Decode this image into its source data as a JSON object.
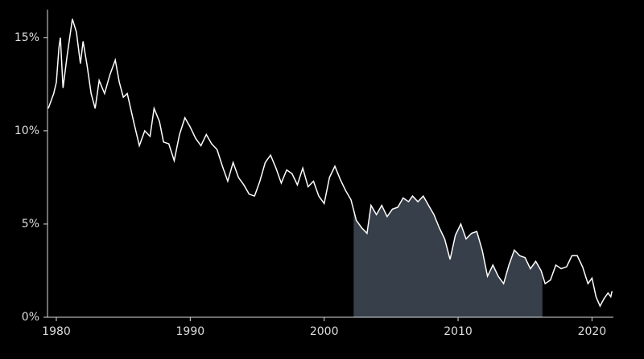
{
  "chart_data": {
    "type": "line",
    "x": [
      1979.4,
      1979.8,
      1980.0,
      1980.2,
      1980.3,
      1980.5,
      1980.8,
      1981.0,
      1981.2,
      1981.5,
      1981.8,
      1982.0,
      1982.3,
      1982.6,
      1982.9,
      1983.2,
      1983.6,
      1984.0,
      1984.4,
      1984.7,
      1985.0,
      1985.3,
      1985.8,
      1986.2,
      1986.6,
      1987.0,
      1987.3,
      1987.7,
      1988.0,
      1988.4,
      1988.8,
      1989.2,
      1989.6,
      1990.0,
      1990.4,
      1990.8,
      1991.2,
      1991.6,
      1992.0,
      1992.4,
      1992.8,
      1993.2,
      1993.6,
      1994.0,
      1994.4,
      1994.8,
      1995.2,
      1995.6,
      1996.0,
      1996.4,
      1996.8,
      1997.2,
      1997.6,
      1998.0,
      1998.4,
      1998.8,
      1999.2,
      1999.6,
      2000.0,
      2000.4,
      2000.8,
      2001.2,
      2001.6,
      2002.0,
      2002.4,
      2002.8,
      2003.2,
      2003.5,
      2003.9,
      2004.3,
      2004.7,
      2005.1,
      2005.5,
      2005.9,
      2006.3,
      2006.6,
      2007.0,
      2007.4,
      2007.8,
      2008.2,
      2008.6,
      2009.0,
      2009.4,
      2009.8,
      2010.2,
      2010.6,
      2011.0,
      2011.4,
      2011.8,
      2012.2,
      2012.6,
      2013.0,
      2013.4,
      2013.8,
      2014.2,
      2014.6,
      2015.0,
      2015.4,
      2015.8,
      2016.2,
      2016.5,
      2016.9,
      2017.3,
      2017.7,
      2018.1,
      2018.5,
      2018.9,
      2019.3,
      2019.7,
      2020.0,
      2020.3,
      2020.6,
      2020.9,
      2021.2,
      2021.4,
      2021.5
    ],
    "series": [
      {
        "color": "#ffffff",
        "values": [
          11.2,
          12.0,
          12.6,
          14.5,
          15.0,
          12.3,
          14.0,
          15.0,
          16.0,
          15.3,
          13.6,
          14.8,
          13.5,
          12.0,
          11.2,
          12.7,
          12.0,
          13.0,
          13.8,
          12.6,
          11.8,
          12.0,
          10.4,
          9.2,
          10.0,
          9.7,
          11.2,
          10.5,
          9.4,
          9.3,
          8.4,
          9.8,
          10.7,
          10.2,
          9.6,
          9.2,
          9.8,
          9.3,
          9.0,
          8.1,
          7.3,
          8.3,
          7.5,
          7.1,
          6.6,
          6.5,
          7.3,
          8.3,
          8.7,
          8.0,
          7.2,
          7.9,
          7.7,
          7.1,
          8.0,
          7.0,
          7.3,
          6.5,
          6.1,
          7.5,
          8.1,
          7.4,
          6.8,
          6.3,
          5.2,
          4.8,
          4.5,
          6.0,
          5.5,
          6.0,
          5.4,
          5.8,
          5.9,
          6.4,
          6.2,
          6.5,
          6.2,
          6.5,
          6.0,
          5.5,
          4.8,
          4.2,
          3.1,
          4.4,
          5.0,
          4.2,
          4.5,
          4.6,
          3.6,
          2.2,
          2.8,
          2.2,
          1.8,
          2.8,
          3.6,
          3.3,
          3.2,
          2.6,
          3.0,
          2.5,
          1.8,
          2.0,
          2.8,
          2.6,
          2.7,
          3.3,
          3.3,
          2.7,
          1.8,
          2.1,
          1.1,
          0.6,
          1.0,
          1.3,
          1.1,
          1.4
        ]
      }
    ],
    "shade": [
      2002.2,
      2016.3
    ],
    "shade_color": "#373f4a",
    "xlim": [
      1979.34,
      2021.6
    ],
    "xticks": [
      1980,
      1990,
      2000,
      2010,
      2020
    ],
    "ylim": [
      0,
      16.5
    ],
    "yticks": [
      {
        "value": 0,
        "label": "0%"
      },
      {
        "value": 5,
        "label": "5%"
      },
      {
        "value": 10,
        "label": "10%"
      },
      {
        "value": 15,
        "label": "15%"
      }
    ]
  }
}
